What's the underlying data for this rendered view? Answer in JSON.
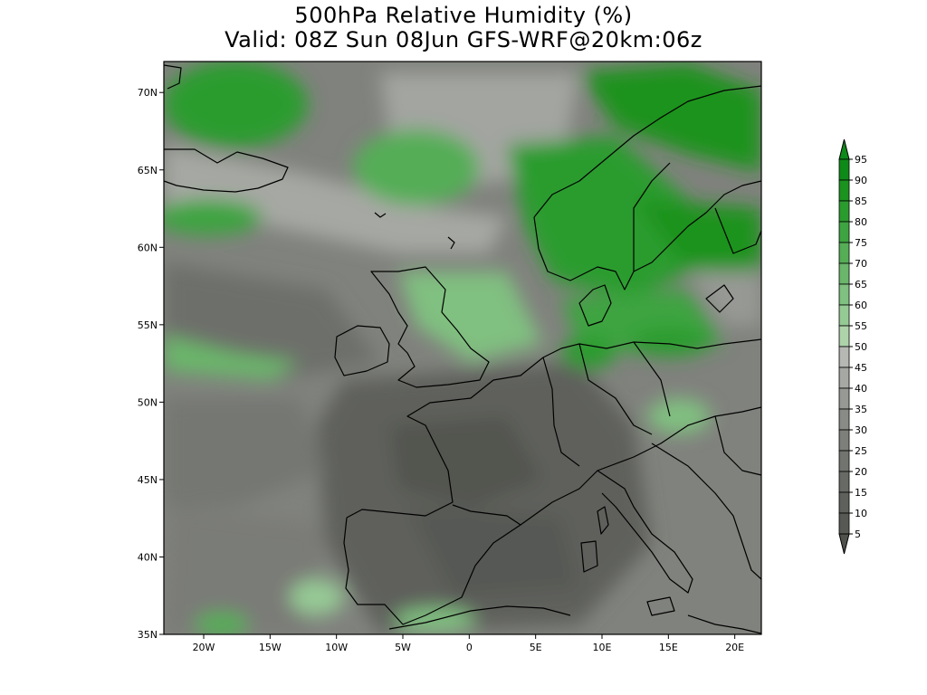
{
  "title": {
    "line1": "500hPa Relative Humidity (%)",
    "line2": "Valid: 08Z Sun 08Jun GFS-WRF@20km:06z"
  },
  "map": {
    "lon_range": [
      -23,
      22
    ],
    "lat_range": [
      35,
      72
    ],
    "lon_ticks": [
      {
        "value": -20,
        "label": "20W"
      },
      {
        "value": -15,
        "label": "15W"
      },
      {
        "value": -10,
        "label": "10W"
      },
      {
        "value": -5,
        "label": "5W"
      },
      {
        "value": 0,
        "label": "0"
      },
      {
        "value": 5,
        "label": "5E"
      },
      {
        "value": 10,
        "label": "10E"
      },
      {
        "value": 15,
        "label": "15E"
      },
      {
        "value": 20,
        "label": "20E"
      }
    ],
    "lat_ticks": [
      {
        "value": 70,
        "label": "70N"
      },
      {
        "value": 65,
        "label": "65N"
      },
      {
        "value": 60,
        "label": "60N"
      },
      {
        "value": 55,
        "label": "55N"
      },
      {
        "value": 50,
        "label": "50N"
      },
      {
        "value": 45,
        "label": "45N"
      },
      {
        "value": 40,
        "label": "40N"
      },
      {
        "value": 35,
        "label": "35N"
      }
    ]
  },
  "colorbar": {
    "labels": [
      "95",
      "90",
      "85",
      "80",
      "75",
      "70",
      "65",
      "60",
      "55",
      "50",
      "45",
      "40",
      "35",
      "30",
      "25",
      "20",
      "15",
      "10",
      "5"
    ],
    "colors": [
      "#0e8a18",
      "#1a931f",
      "#2a9c2e",
      "#3da441",
      "#55ad56",
      "#6ab66b",
      "#80c080",
      "#96ca95",
      "#aed3ab",
      "#b6b8b4",
      "#a6a8a3",
      "#979994",
      "#898b86",
      "#7d7f7a",
      "#72746f",
      "#686a65",
      "#5f615c",
      "#575954",
      "#4f514c"
    ],
    "arrow_top": "#0e8a18",
    "arrow_bottom": "#4f514c"
  }
}
